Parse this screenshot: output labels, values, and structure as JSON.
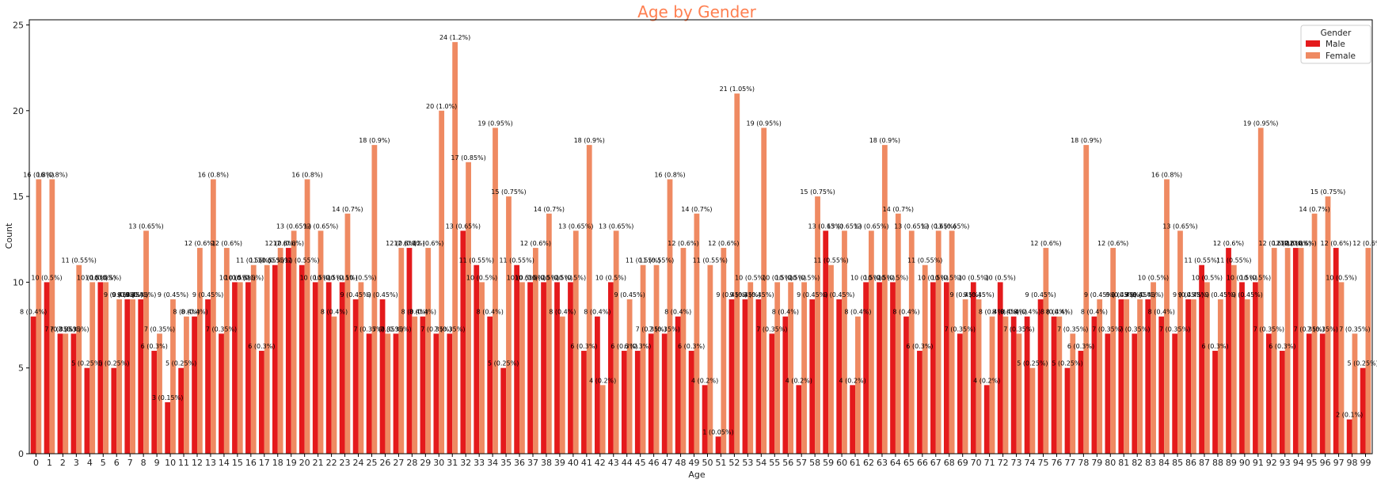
{
  "chart_data": {
    "type": "bar",
    "title": "Age by Gender",
    "xlabel": "Age",
    "ylabel": "Count",
    "ylim": [
      0,
      25.3
    ],
    "yticks": [
      0,
      5,
      10,
      15,
      20,
      25
    ],
    "legend": {
      "title": "Gender",
      "placement": "top-right"
    },
    "grid": false,
    "colors": {
      "Male": "#e41a1c",
      "Female": "#ef8a62",
      "title": "#ff7f50"
    },
    "categories": [
      "0",
      "1",
      "2",
      "3",
      "4",
      "5",
      "6",
      "7",
      "8",
      "9",
      "10",
      "11",
      "12",
      "13",
      "14",
      "15",
      "16",
      "17",
      "18",
      "19",
      "20",
      "21",
      "22",
      "23",
      "24",
      "25",
      "26",
      "27",
      "28",
      "29",
      "30",
      "31",
      "32",
      "33",
      "34",
      "35",
      "36",
      "37",
      "38",
      "39",
      "40",
      "41",
      "42",
      "43",
      "44",
      "45",
      "46",
      "47",
      "48",
      "49",
      "50",
      "51",
      "52",
      "53",
      "54",
      "55",
      "56",
      "57",
      "58",
      "59",
      "60",
      "61",
      "62",
      "63",
      "64",
      "65",
      "66",
      "67",
      "68",
      "69",
      "70",
      "71",
      "72",
      "73",
      "74",
      "75",
      "76",
      "77",
      "78",
      "79",
      "80",
      "81",
      "82",
      "83",
      "84",
      "85",
      "86",
      "87",
      "88",
      "89",
      "90",
      "91",
      "92",
      "93",
      "94",
      "95",
      "96",
      "97",
      "98",
      "99"
    ],
    "series": [
      {
        "name": "Male",
        "values": [
          8,
          10,
          7,
          7,
          5,
          10,
          5,
          9,
          9,
          6,
          3,
          5,
          8,
          9,
          7,
          10,
          10,
          6,
          11,
          12,
          11,
          10,
          10,
          10,
          9,
          7,
          9,
          7,
          12,
          8,
          7,
          7,
          13,
          11,
          8,
          5,
          11,
          10,
          10,
          10,
          10,
          6,
          8,
          10,
          6,
          6,
          7,
          7,
          8,
          6,
          4,
          1,
          9,
          9,
          9,
          7,
          8,
          4,
          9,
          13,
          9,
          4,
          10,
          10,
          10,
          8,
          6,
          10,
          10,
          7,
          10,
          4,
          10,
          8,
          8,
          9,
          8,
          5,
          6,
          8,
          7,
          9,
          7,
          9,
          8,
          7,
          9,
          11,
          6,
          12,
          10,
          10,
          7,
          6,
          12,
          7,
          7,
          12,
          2,
          5
        ],
        "labels": [
          "8 (0.4%)",
          "10 (0.5%)",
          "7 (0.35%)",
          "7 (0.35%)",
          "5 (0.25%)",
          "10 (0.5%)",
          "5 (0.25%)",
          "9 (0.45%)",
          "9 (0.45%)",
          "6 (0.3%)",
          "3 (0.15%)",
          "5 (0.25%)",
          "8 (0.4%)",
          "9 (0.45%)",
          "7 (0.35%)",
          "10 (0.5%)",
          "10 (0.5%)",
          "6 (0.3%)",
          "11 (0.55%)",
          "12 (0.6%)",
          "11 (0.55%)",
          "10 (0.5%)",
          "10 (0.5%)",
          "10 (0.5%)",
          "9 (0.45%)",
          "7 (0.35%)",
          "9 (0.45%)",
          "7 (0.35%)",
          "12 (0.6%)",
          "8 (0.4%)",
          "7 (0.35%)",
          "7 (0.35%)",
          "13 (0.65%)",
          "11 (0.55%)",
          "8 (0.4%)",
          "5 (0.25%)",
          "11 (0.55%)",
          "10 (0.5%)",
          "10 (0.5%)",
          "10 (0.5%)",
          "10 (0.5%)",
          "6 (0.3%)",
          "8 (0.4%)",
          "10 (0.5%)",
          "6 (0.3%)",
          "6 (0.3%)",
          "7 (0.35%)",
          "7 (0.35%)",
          "8 (0.4%)",
          "6 (0.3%)",
          "4 (0.2%)",
          "1 (0.05%)",
          "9 (0.45%)",
          "9 (0.45%)",
          "9 (0.45%)",
          "7 (0.35%)",
          "8 (0.4%)",
          "4 (0.2%)",
          "9 (0.45%)",
          "13 (0.65%)",
          "9 (0.45%)",
          "4 (0.2%)",
          "10 (0.5%)",
          "10 (0.5%)",
          "10 (0.5%)",
          "8 (0.4%)",
          "6 (0.3%)",
          "10 (0.5%)",
          "10 (0.5%)",
          "7 (0.35%)",
          "10 (0.5%)",
          "4 (0.2%)",
          "10 (0.5%)",
          "8 (0.4%)",
          "8 (0.4%)",
          "9 (0.45%)",
          "8 (0.4%)",
          "5 (0.25%)",
          "6 (0.3%)",
          "8 (0.4%)",
          "7 (0.35%)",
          "9 (0.45%)",
          "7 (0.35%)",
          "9 (0.45%)",
          "8 (0.4%)",
          "7 (0.35%)",
          "9 (0.45%)",
          "11 (0.55%)",
          "6 (0.3%)",
          "12 (0.6%)",
          "10 (0.5%)",
          "10 (0.5%)",
          "7 (0.35%)",
          "6 (0.3%)",
          "12 (0.6%)",
          "7 (0.35%)",
          "7 (0.35%)",
          "12 (0.6%)",
          "2 (0.1%)",
          "5 (0.25%)"
        ]
      },
      {
        "name": "Female",
        "values": [
          16,
          16,
          7,
          11,
          10,
          10,
          9,
          9,
          13,
          7,
          9,
          8,
          12,
          16,
          12,
          10,
          11,
          11,
          12,
          13,
          16,
          13,
          8,
          14,
          10,
          18,
          7,
          12,
          8,
          12,
          20,
          24,
          17,
          10,
          19,
          15,
          10,
          12,
          14,
          8,
          13,
          18,
          4,
          13,
          9,
          11,
          11,
          16,
          12,
          14,
          11,
          12,
          21,
          10,
          19,
          10,
          10,
          10,
          15,
          11,
          13,
          8,
          13,
          18,
          14,
          13,
          11,
          13,
          13,
          9,
          9,
          8,
          8,
          7,
          5,
          12,
          8,
          7,
          18,
          9,
          12,
          9,
          9,
          10,
          16,
          13,
          9,
          10,
          9,
          11,
          9,
          19,
          12,
          12,
          12,
          14,
          15,
          10,
          7,
          12
        ],
        "labels": [
          "16 (0.8%)",
          "16 (0.8%)",
          "7 (0.35%)",
          "11 (0.55%)",
          "10 (0.5%)",
          "10 (0.5%)",
          "9 (0.45%)",
          "9 (0.45%)",
          "13 (0.65%)",
          "7 (0.35%)",
          "9 (0.45%)",
          "8 (0.4%)",
          "12 (0.6%)",
          "16 (0.8%)",
          "12 (0.6%)",
          "10 (0.5%)",
          "11 (0.55%)",
          "11 (0.55%)",
          "12 (0.6%)",
          "13 (0.65%)",
          "16 (0.8%)",
          "13 (0.65%)",
          "8 (0.4%)",
          "14 (0.7%)",
          "10 (0.5%)",
          "18 (0.9%)",
          "7 (0.35%)",
          "12 (0.6%)",
          "8 (0.4%)",
          "12 (0.6%)",
          "20 (1.0%)",
          "24 (1.2%)",
          "17 (0.85%)",
          "10 (0.5%)",
          "19 (0.95%)",
          "15 (0.75%)",
          "10 (0.5%)",
          "12 (0.6%)",
          "14 (0.7%)",
          "8 (0.4%)",
          "13 (0.65%)",
          "18 (0.9%)",
          "4 (0.2%)",
          "13 (0.65%)",
          "9 (0.45%)",
          "11 (0.55%)",
          "11 (0.55%)",
          "16 (0.8%)",
          "12 (0.6%)",
          "14 (0.7%)",
          "11 (0.55%)",
          "12 (0.6%)",
          "21 (1.05%)",
          "10 (0.5%)",
          "19 (0.95%)",
          "10 (0.5%)",
          "10 (0.5%)",
          "10 (0.5%)",
          "15 (0.75%)",
          "11 (0.55%)",
          "13 (0.65%)",
          "8 (0.4%)",
          "13 (0.65%)",
          "18 (0.9%)",
          "14 (0.7%)",
          "13 (0.65%)",
          "11 (0.55%)",
          "13 (0.65%)",
          "13 (0.65%)",
          "9 (0.45%)",
          "9 (0.45%)",
          "8 (0.4%)",
          "8 (0.4%)",
          "7 (0.35%)",
          "5 (0.25%)",
          "12 (0.6%)",
          "8 (0.4%)",
          "7 (0.35%)",
          "18 (0.9%)",
          "9 (0.45%)",
          "12 (0.6%)",
          "9 (0.45%)",
          "9 (0.45%)",
          "10 (0.5%)",
          "16 (0.8%)",
          "13 (0.65%)",
          "9 (0.45%)",
          "10 (0.5%)",
          "9 (0.45%)",
          "11 (0.55%)",
          "9 (0.45%)",
          "19 (0.95%)",
          "12 (0.6%)",
          "12 (0.6%)",
          "12 (0.6%)",
          "14 (0.7%)",
          "15 (0.75%)",
          "10 (0.5%)",
          "7 (0.35%)",
          "12 (0.6%)"
        ]
      }
    ]
  }
}
